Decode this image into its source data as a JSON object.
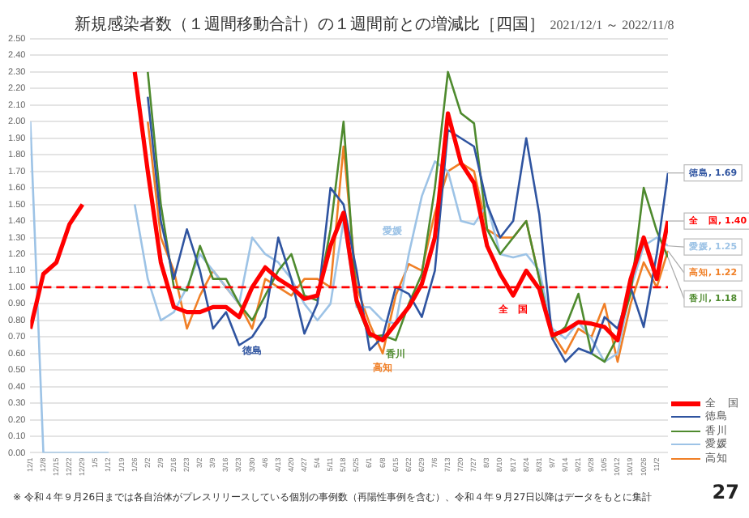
{
  "chart_data": {
    "type": "line",
    "title": "新規感染者数（１週間移動合計）の１週間前との増減比［四国］",
    "subtitle": "2021/12/1 ～ 2022/11/8",
    "x": [
      "2021-12-01",
      "2021-12-08",
      "2021-12-15",
      "2021-12-22",
      "2021-12-29",
      "2022-01-05",
      "2022-01-12",
      "2022-01-19",
      "2022-01-26",
      "2022-02-02",
      "2022-02-09",
      "2022-02-16",
      "2022-02-23",
      "2022-03-02",
      "2022-03-09",
      "2022-03-16",
      "2022-03-23",
      "2022-03-30",
      "2022-04-06",
      "2022-04-13",
      "2022-04-20",
      "2022-04-27",
      "2022-05-04",
      "2022-05-11",
      "2022-05-18",
      "2022-05-25",
      "2022-06-01",
      "2022-06-08",
      "2022-06-15",
      "2022-06-22",
      "2022-06-29",
      "2022-07-06",
      "2022-07-13",
      "2022-07-20",
      "2022-07-27",
      "2022-08-03",
      "2022-08-10",
      "2022-08-17",
      "2022-08-24",
      "2022-08-31",
      "2022-09-07",
      "2022-09-14",
      "2022-09-21",
      "2022-09-28",
      "2022-10-05",
      "2022-10-12",
      "2022-10-19",
      "2022-10-26",
      "2022-11-02",
      "2022-11-08"
    ],
    "series": [
      {
        "name": "全　国",
        "color": "#ff0000",
        "values": [
          0.75,
          1.08,
          1.15,
          1.38,
          1.5,
          null,
          null,
          null,
          2.3,
          1.7,
          1.15,
          0.88,
          0.85,
          0.85,
          0.88,
          0.88,
          0.82,
          1.0,
          1.12,
          1.05,
          1.0,
          0.93,
          0.95,
          1.25,
          1.45,
          0.92,
          0.72,
          0.68,
          0.78,
          0.88,
          1.02,
          1.3,
          2.05,
          1.75,
          1.63,
          1.25,
          1.08,
          0.95,
          1.1,
          0.99,
          0.71,
          0.74,
          0.79,
          0.78,
          0.76,
          0.68,
          1.05,
          1.3,
          1.05,
          1.4
        ]
      },
      {
        "name": "徳島",
        "color": "#2f54a0",
        "values": [
          null,
          null,
          null,
          null,
          null,
          null,
          null,
          null,
          null,
          2.15,
          1.4,
          1.05,
          1.35,
          1.1,
          0.75,
          0.85,
          0.65,
          0.7,
          0.82,
          1.3,
          1.05,
          0.72,
          0.9,
          1.6,
          1.5,
          1.1,
          0.62,
          0.7,
          1.0,
          0.96,
          0.82,
          1.1,
          1.95,
          1.9,
          1.85,
          1.5,
          1.3,
          1.4,
          1.9,
          1.44,
          0.69,
          0.55,
          0.63,
          0.6,
          0.82,
          0.75,
          1.0,
          0.76,
          1.2,
          1.69
        ]
      },
      {
        "name": "香川",
        "color": "#4e8a2e",
        "values": [
          null,
          null,
          null,
          null,
          null,
          null,
          null,
          null,
          null,
          2.3,
          1.5,
          1.0,
          0.98,
          1.25,
          1.05,
          1.05,
          0.9,
          0.8,
          0.95,
          1.1,
          1.2,
          0.95,
          0.92,
          1.35,
          2.0,
          0.9,
          0.7,
          0.71,
          0.68,
          0.9,
          1.08,
          1.6,
          2.3,
          2.05,
          1.99,
          1.35,
          1.2,
          1.3,
          1.4,
          1.05,
          0.69,
          0.76,
          0.96,
          0.6,
          0.55,
          0.7,
          0.96,
          1.6,
          1.34,
          1.18
        ]
      },
      {
        "name": "愛媛",
        "color": "#9dc3e6",
        "values": [
          2.0,
          0,
          0,
          0,
          0,
          0,
          0,
          null,
          1.5,
          1.05,
          0.8,
          0.85,
          1.0,
          1.2,
          1.1,
          1.0,
          0.9,
          1.3,
          1.2,
          1.15,
          1.05,
          0.9,
          0.8,
          0.9,
          1.4,
          0.88,
          0.88,
          0.8,
          0.78,
          1.2,
          1.55,
          1.76,
          1.7,
          1.4,
          1.38,
          1.5,
          1.2,
          1.18,
          1.2,
          1.1,
          0.75,
          0.69,
          0.79,
          0.69,
          0.55,
          0.6,
          0.99,
          1.25,
          1.3,
          1.25
        ]
      },
      {
        "name": "高知",
        "color": "#f07f26",
        "values": [
          null,
          null,
          null,
          null,
          null,
          null,
          null,
          null,
          null,
          2.0,
          1.3,
          1.1,
          0.75,
          0.95,
          1.1,
          1.0,
          0.9,
          0.75,
          1.05,
          1.0,
          0.95,
          1.05,
          1.05,
          1.0,
          1.85,
          1.0,
          0.78,
          0.6,
          0.95,
          1.14,
          1.1,
          1.45,
          1.7,
          1.75,
          1.7,
          1.35,
          1.3,
          1.3,
          1.4,
          1.05,
          0.72,
          0.6,
          0.75,
          0.7,
          0.9,
          0.55,
          0.9,
          1.15,
          1.0,
          1.22
        ]
      }
    ],
    "xlim": [
      "2021-12-01",
      "2022-11-08"
    ],
    "xticks": [
      {
        "value": "2021-12-01",
        "label": "12/1"
      },
      {
        "value": "2021-12-08",
        "label": "12/8"
      },
      {
        "value": "2021-12-15",
        "label": "12/15"
      },
      {
        "value": "2021-12-22",
        "label": "12/22"
      },
      {
        "value": "2021-12-29",
        "label": "12/29"
      },
      {
        "value": "2022-01-05",
        "label": "1/5"
      },
      {
        "value": "2022-01-12",
        "label": "1/12"
      },
      {
        "value": "2022-01-19",
        "label": "1/19"
      },
      {
        "value": "2022-01-26",
        "label": "1/26"
      },
      {
        "value": "2022-02-02",
        "label": "2/2"
      },
      {
        "value": "2022-02-09",
        "label": "2/9"
      },
      {
        "value": "2022-02-16",
        "label": "2/16"
      },
      {
        "value": "2022-02-23",
        "label": "2/23"
      },
      {
        "value": "2022-03-02",
        "label": "3/2"
      },
      {
        "value": "2022-03-09",
        "label": "3/9"
      },
      {
        "value": "2022-03-16",
        "label": "3/16"
      },
      {
        "value": "2022-03-23",
        "label": "3/23"
      },
      {
        "value": "2022-03-30",
        "label": "3/30"
      },
      {
        "value": "2022-04-06",
        "label": "4/6"
      },
      {
        "value": "2022-04-13",
        "label": "4/13"
      },
      {
        "value": "2022-04-20",
        "label": "4/20"
      },
      {
        "value": "2022-04-27",
        "label": "4/27"
      },
      {
        "value": "2022-05-04",
        "label": "5/4"
      },
      {
        "value": "2022-05-11",
        "label": "5/11"
      },
      {
        "value": "2022-05-18",
        "label": "5/18"
      },
      {
        "value": "2022-05-25",
        "label": "5/25"
      },
      {
        "value": "2022-06-01",
        "label": "6/1"
      },
      {
        "value": "2022-06-08",
        "label": "6/8"
      },
      {
        "value": "2022-06-15",
        "label": "6/15"
      },
      {
        "value": "2022-06-22",
        "label": "6/22"
      },
      {
        "value": "2022-06-29",
        "label": "6/29"
      },
      {
        "value": "2022-07-06",
        "label": "7/6"
      },
      {
        "value": "2022-07-13",
        "label": "7/13"
      },
      {
        "value": "2022-07-20",
        "label": "7/20"
      },
      {
        "value": "2022-07-27",
        "label": "7/27"
      },
      {
        "value": "2022-08-03",
        "label": "8/3"
      },
      {
        "value": "2022-08-10",
        "label": "8/10"
      },
      {
        "value": "2022-08-17",
        "label": "8/17"
      },
      {
        "value": "2022-08-24",
        "label": "8/24"
      },
      {
        "value": "2022-08-31",
        "label": "8/31"
      },
      {
        "value": "2022-09-07",
        "label": "9/7"
      },
      {
        "value": "2022-09-14",
        "label": "9/14"
      },
      {
        "value": "2022-09-21",
        "label": "9/21"
      },
      {
        "value": "2022-09-28",
        "label": "9/28"
      },
      {
        "value": "2022-10-05",
        "label": "10/5"
      },
      {
        "value": "2022-10-12",
        "label": "10/12"
      },
      {
        "value": "2022-10-19",
        "label": "10/19"
      },
      {
        "value": "2022-10-26",
        "label": "10/26"
      },
      {
        "value": "2022-11-02",
        "label": "11/2"
      }
    ],
    "ylim": [
      0,
      2.5
    ],
    "yticks": [
      {
        "value": 0,
        "label": "0.00"
      },
      {
        "value": 0.1,
        "label": "0.10"
      },
      {
        "value": 0.2,
        "label": "0.20"
      },
      {
        "value": 0.3,
        "label": "0.30"
      },
      {
        "value": 0.4,
        "label": "0.40"
      },
      {
        "value": 0.5,
        "label": "0.50"
      },
      {
        "value": 0.6,
        "label": "0.60"
      },
      {
        "value": 0.7,
        "label": "0.70"
      },
      {
        "value": 0.8,
        "label": "0.80"
      },
      {
        "value": 0.9,
        "label": "0.90"
      },
      {
        "value": 1,
        "label": "1.00"
      },
      {
        "value": 1.1,
        "label": "1.10"
      },
      {
        "value": 1.2,
        "label": "1.20"
      },
      {
        "value": 1.3,
        "label": "1.30"
      },
      {
        "value": 1.4,
        "label": "1.40"
      },
      {
        "value": 1.5,
        "label": "1.50"
      },
      {
        "value": 1.6,
        "label": "1.60"
      },
      {
        "value": 1.7,
        "label": "1.70"
      },
      {
        "value": 1.8,
        "label": "1.80"
      },
      {
        "value": 1.9,
        "label": "1.90"
      },
      {
        "value": 2,
        "label": "2.00"
      },
      {
        "value": 2.1,
        "label": "2.10"
      },
      {
        "value": 2.2,
        "label": "2.20"
      },
      {
        "value": 2.3,
        "label": "2.30"
      },
      {
        "value": 2.4,
        "label": "2.40"
      },
      {
        "value": 2.5,
        "label": "2.50"
      }
    ],
    "ref_lines": [
      {
        "axis": "y",
        "value": 1,
        "color": "#ff0000",
        "line_style": "dashed"
      }
    ],
    "annotations": [
      {
        "text": "徳島, 1.69",
        "x": "2022-11-08",
        "y": 1.69
      },
      {
        "text": "全　国, 1.40",
        "x": "2022-11-08",
        "y": 1.4
      },
      {
        "text": "愛媛, 1.25",
        "x": "2022-11-08",
        "y": 1.25
      },
      {
        "text": "高知, 1.22",
        "x": "2022-11-08",
        "y": 1.22
      },
      {
        "text": "香川, 1.18",
        "x": "2022-11-08",
        "y": 1.18
      },
      {
        "text": "徳島",
        "x": "2022-03-30",
        "y": 0.7
      },
      {
        "text": "愛媛",
        "x": "2022-06-22",
        "y": 1.2
      },
      {
        "text": "高知",
        "x": "2022-06-08",
        "y": 0.6
      },
      {
        "text": "香川",
        "x": "2022-06-15",
        "y": 0.68
      },
      {
        "text": "全　国",
        "x": "2022-08-17",
        "y": 0.95
      },
      "※ 令和４年９月26日までは各自治体がプレスリリースしている個別の事例数（再陽性事例を含む）、令和４年９月27日以降はデータをもとに集計",
      "27"
    ],
    "grid": "y",
    "legend": "bottom right"
  }
}
